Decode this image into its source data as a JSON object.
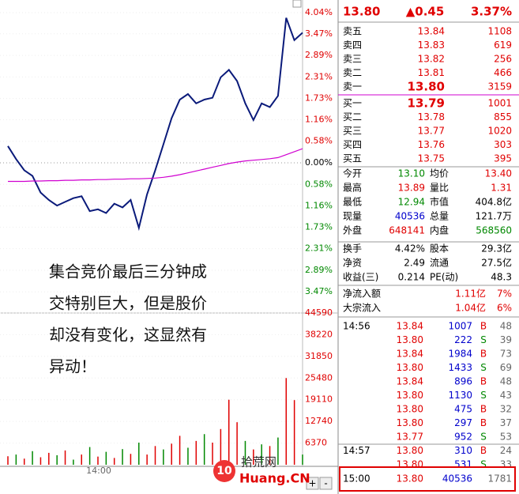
{
  "price_chart": {
    "type": "line",
    "yticks": [
      {
        "value": 4.04,
        "label": "4.04%"
      },
      {
        "value": 3.47,
        "label": "3.47%"
      },
      {
        "value": 2.89,
        "label": "2.89%"
      },
      {
        "value": 2.31,
        "label": "2.31%"
      },
      {
        "value": 1.73,
        "label": "1.73%"
      },
      {
        "value": 1.16,
        "label": "1.16%"
      },
      {
        "value": 0.58,
        "label": "0.58%"
      },
      {
        "value": 0,
        "label": "0.00%"
      },
      {
        "value": -0.58,
        "label": "0.58%"
      },
      {
        "value": -1.16,
        "label": "1.16%"
      },
      {
        "value": -1.73,
        "label": "1.73%"
      },
      {
        "value": -2.31,
        "label": "2.31%"
      },
      {
        "value": -2.89,
        "label": "2.89%"
      },
      {
        "value": -3.47,
        "label": "3.47%"
      }
    ],
    "ylim": [
      -4.04,
      4.04
    ],
    "series": [
      {
        "color": "#0a1a7a",
        "values": [
          0.45,
          0.1,
          -0.2,
          -0.35,
          -0.8,
          -1.0,
          -1.15,
          -1.05,
          -0.95,
          -0.9,
          -1.3,
          -1.25,
          -1.35,
          -1.1,
          -1.2,
          -1.0,
          -1.75,
          -0.85,
          -0.2,
          0.5,
          1.2,
          1.7,
          1.85,
          1.6,
          1.7,
          1.75,
          2.3,
          2.5,
          2.2,
          1.6,
          1.15,
          1.6,
          1.5,
          1.8,
          3.9,
          3.3,
          3.5
        ]
      },
      {
        "color": "#d000d0",
        "values": [
          -0.5,
          -0.5,
          -0.5,
          -0.49,
          -0.49,
          -0.48,
          -0.48,
          -0.47,
          -0.47,
          -0.46,
          -0.46,
          -0.45,
          -0.45,
          -0.44,
          -0.44,
          -0.43,
          -0.43,
          -0.42,
          -0.41,
          -0.39,
          -0.36,
          -0.32,
          -0.27,
          -0.22,
          -0.17,
          -0.12,
          -0.07,
          -0.02,
          0.02,
          0.05,
          0.07,
          0.09,
          0.11,
          0.14,
          0.22,
          0.3,
          0.38
        ]
      }
    ],
    "time_label": "14:00"
  },
  "volume_chart": {
    "type": "bar",
    "yticks": [
      44590,
      38220,
      31850,
      25480,
      19110,
      12740,
      6370
    ],
    "ylim": [
      0,
      44590
    ],
    "values": [
      2500,
      3000,
      1800,
      4000,
      2200,
      3500,
      2800,
      4200,
      1500,
      3000,
      5200,
      2400,
      3800,
      2000,
      4600,
      3200,
      6500,
      3000,
      5500,
      4500,
      6200,
      8500,
      5000,
      7000,
      9000,
      6500,
      10500,
      19110,
      12500,
      7000,
      4500,
      6000,
      5500,
      8000,
      25480,
      19000,
      3000
    ],
    "colors": [
      "#e00000",
      "#008800",
      "#e00000",
      "#008800",
      "#e00000",
      "#e00000",
      "#008800",
      "#e00000",
      "#008800",
      "#e00000",
      "#008800",
      "#e00000",
      "#008800",
      "#e00000",
      "#008800",
      "#e00000",
      "#008800",
      "#e00000",
      "#e00000",
      "#008800",
      "#e00000",
      "#e00000",
      "#008800",
      "#e00000",
      "#008800",
      "#e00000",
      "#e00000",
      "#e00000",
      "#e00000",
      "#008800",
      "#e00000",
      "#008800",
      "#e00000",
      "#008800",
      "#e00000",
      "#e00000",
      "#008800"
    ]
  },
  "annotation": [
    "集合竞价最后三分钟成",
    "交特别巨大，但是股价",
    "却没有变化，这显然有",
    "异动！"
  ],
  "controls": [
    "+",
    "-"
  ],
  "watermark": {
    "mark": "10",
    "name": "拾荒网",
    "site": "Huang.CN"
  },
  "quote_panel": {
    "header": [
      "13.80",
      "▲0.45",
      "3.37%"
    ],
    "asks": [
      [
        "卖五",
        "13.84",
        "1108"
      ],
      [
        "卖四",
        "13.83",
        "619"
      ],
      [
        "卖三",
        "13.82",
        "256"
      ],
      [
        "卖二",
        "13.81",
        "466"
      ],
      [
        "卖一",
        "13.80",
        "3159"
      ]
    ],
    "bids": [
      [
        "买一",
        "13.79",
        "1001"
      ],
      [
        "买二",
        "13.78",
        "855"
      ],
      [
        "买三",
        "13.77",
        "1020"
      ],
      [
        "买四",
        "13.76",
        "303"
      ],
      [
        "买五",
        "13.75",
        "395"
      ]
    ],
    "stats": [
      [
        "今开",
        "13.10",
        "均价",
        "13.40"
      ],
      [
        "最高",
        "13.89",
        "量比",
        "1.31"
      ],
      [
        "最低",
        "12.94",
        "市值",
        "404.8亿"
      ],
      [
        "现量",
        "40536",
        "总量",
        "121.7万"
      ],
      [
        "外盘",
        "648141",
        "内盘",
        "568560"
      ]
    ],
    "stats2": [
      [
        "换手",
        "4.42%",
        "股本",
        "29.3亿"
      ],
      [
        "净资",
        "2.49",
        "流通",
        "27.5亿"
      ],
      [
        "收益(三)",
        "0.214",
        "PE(动)",
        "48.3"
      ]
    ],
    "flows": [
      [
        "净流入额",
        "1.11亿",
        "7%"
      ],
      [
        "大宗流入",
        "1.04亿",
        "6%"
      ]
    ],
    "trades": [
      [
        "14:56",
        "13.84",
        "1007",
        "B",
        "48"
      ],
      [
        null,
        "13.80",
        "222",
        "S",
        "39"
      ],
      [
        null,
        "13.84",
        "1984",
        "B",
        "73"
      ],
      [
        null,
        "13.80",
        "1433",
        "S",
        "69"
      ],
      [
        null,
        "13.84",
        "896",
        "B",
        "48"
      ],
      [
        null,
        "13.80",
        "1130",
        "S",
        "43"
      ],
      [
        null,
        "13.80",
        "475",
        "B",
        "32"
      ],
      [
        null,
        "13.80",
        "297",
        "B",
        "37"
      ],
      [
        null,
        "13.77",
        "952",
        "S",
        "53"
      ],
      [
        "14:57",
        "13.80",
        "310",
        "B",
        "24"
      ],
      [
        null,
        "13.80",
        "531",
        "S",
        "33"
      ]
    ],
    "last": [
      "15:00",
      "13.80",
      "40536",
      "1781"
    ]
  }
}
